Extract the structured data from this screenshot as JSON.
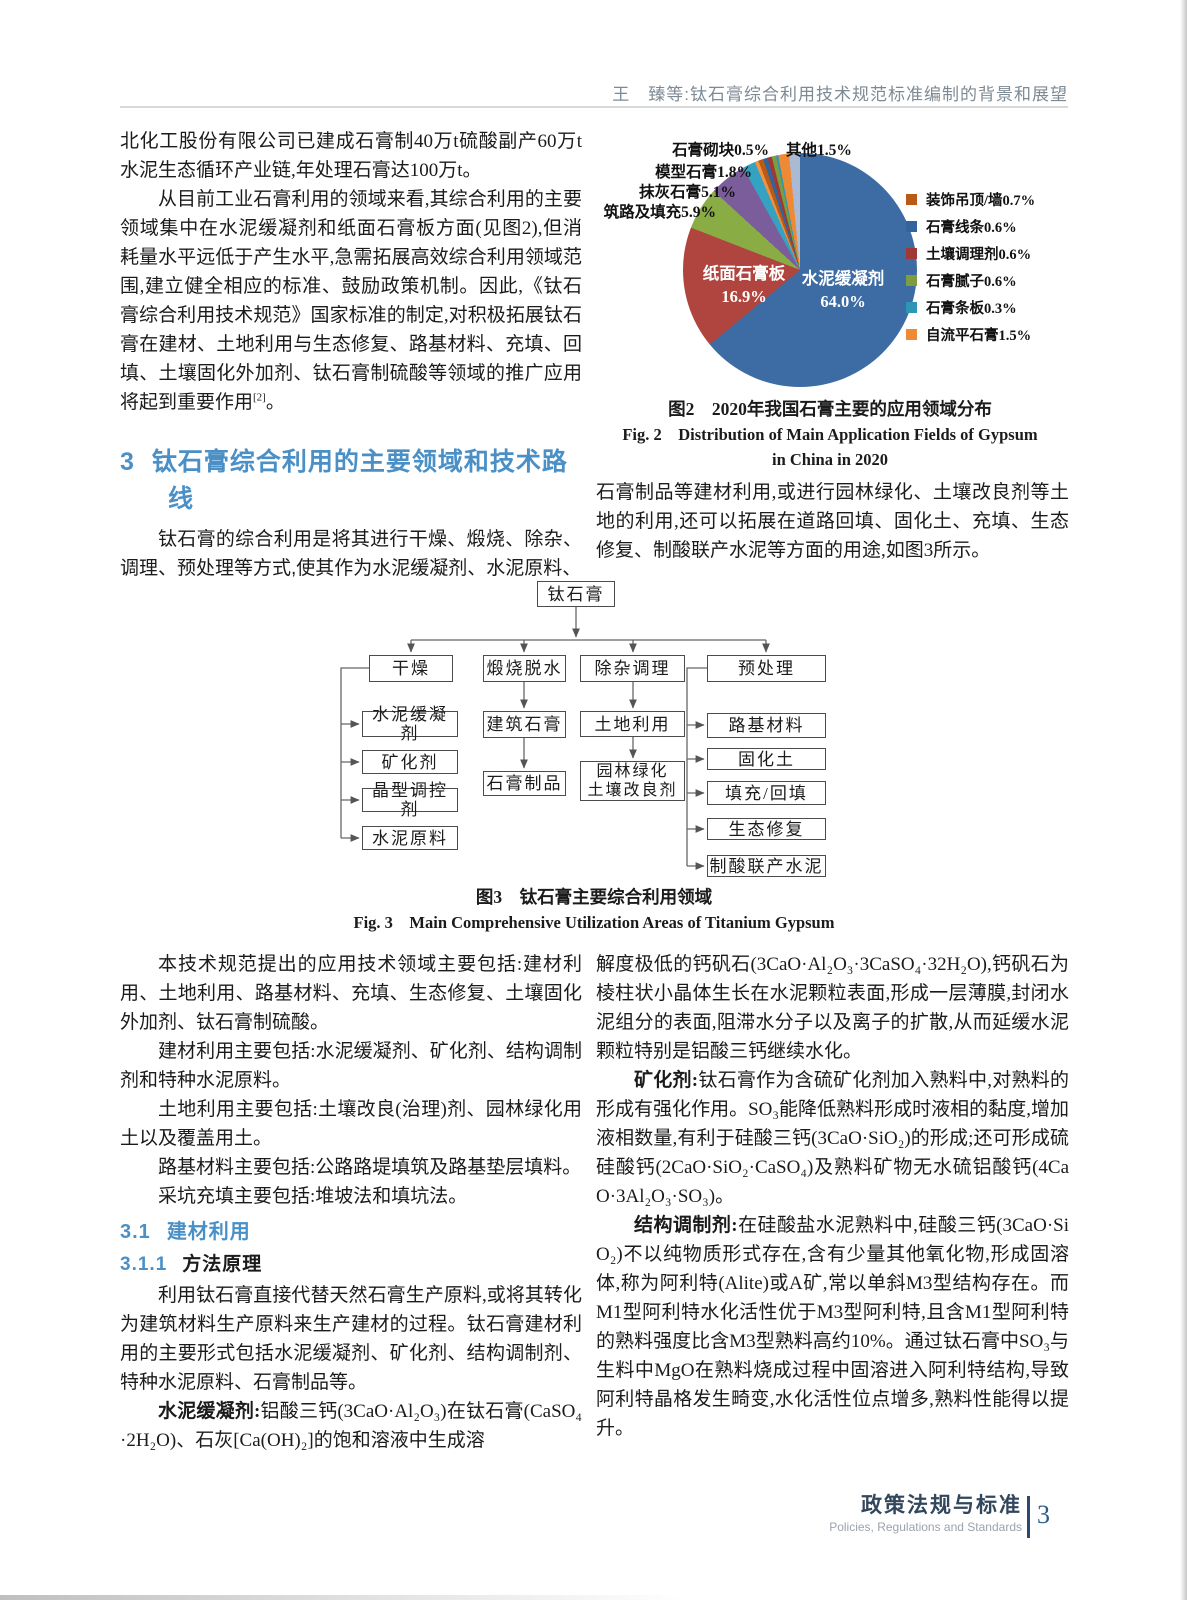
{
  "header": {
    "title": "王　臻等:钛石膏综合利用技术规范标准编制的背景和展望"
  },
  "left_top": {
    "p1": "北化工股份有限公司已建成石膏制40万t硫酸副产60万t水泥生态循环产业链,年处理石膏达100万t。",
    "p2_text": "从目前工业石膏利用的领域来看,其综合利用的主要领域集中在水泥缓凝剂和纸面石膏板方面(见图2),但消耗量水平远低于产生水平,急需拓展高效综合利用领域范围,建立健全相应的标准、鼓励政策机制。因此,《钛石膏综合利用技术规范》国家标准的制定,对积极拓展钛石膏在建材、土地利用与生态修复、路基材料、充填、回填、土壤固化外加剂、钛石膏制硫酸等领域的推广应用将起到重要作用",
    "p2_ref": "[2]",
    "p2_tail": "。"
  },
  "section3": {
    "number": "3",
    "title": "钛石膏综合利用的主要领域和技术路线",
    "intro": "钛石膏的综合利用是将其进行干燥、煅烧、除杂、调理、预处理等方式,使其作为水泥缓凝剂、水泥原料、"
  },
  "right_top": {
    "p1": "石膏制品等建材利用,或进行园林绿化、土壤改良剂等土地的利用,还可以拓展在道路回填、固化土、充填、生态修复、制酸联产水泥等方面的用途,如图3所示。"
  },
  "chart_data": {
    "type": "pie",
    "title": "2020年我国石膏主要的应用领域分布",
    "legend_position": "right",
    "slices": [
      {
        "label": "水泥缓凝剂",
        "value": 64.0,
        "color": "#3d6ca5",
        "placement": "inside"
      },
      {
        "label": "纸面石膏板",
        "value": 16.9,
        "color": "#b0453f",
        "placement": "inside"
      },
      {
        "label": "筑路及填充",
        "value": 5.9,
        "color": "#8aac45",
        "placement": "callout"
      },
      {
        "label": "抹灰石膏",
        "value": 5.1,
        "color": "#7b5d9b",
        "placement": "callout"
      },
      {
        "label": "模型石膏",
        "value": 1.8,
        "color": "#35a2c2",
        "placement": "callout"
      },
      {
        "label": "石膏砌块",
        "value": 0.5,
        "color": "#f29143",
        "placement": "callout"
      },
      {
        "label": "装饰吊顶/墙",
        "value": 0.7,
        "color": "#ba5a17",
        "placement": "legend"
      },
      {
        "label": "石膏线条",
        "value": 0.6,
        "color": "#31639f",
        "placement": "legend"
      },
      {
        "label": "土壤调理剂",
        "value": 0.6,
        "color": "#a23835",
        "placement": "legend"
      },
      {
        "label": "石膏腻子",
        "value": 0.6,
        "color": "#7e9d3f",
        "placement": "legend"
      },
      {
        "label": "石膏条板",
        "value": 0.3,
        "color": "#2d96b5",
        "placement": "legend"
      },
      {
        "label": "自流平石膏",
        "value": 1.5,
        "color": "#ee8a35",
        "placement": "legend"
      },
      {
        "label": "其他",
        "value": 1.5,
        "color": "#a9bad2",
        "placement": "callout"
      }
    ]
  },
  "figure2": {
    "caption_cn": "图2　2020年我国石膏主要的应用领域分布",
    "caption_en_1": "Fig. 2　Distribution of Main Application Fields of Gypsum",
    "caption_en_2": "in China in 2020"
  },
  "figure3": {
    "caption_cn": "图3　钛石膏主要综合利用领域",
    "caption_en": "Fig. 3　Main Comprehensive Utilization Areas of Titanium Gypsum",
    "nodes": [
      "钛石膏",
      "干燥",
      "煅烧脱水",
      "除杂调理",
      "预处理",
      "水泥缓凝剂",
      "矿化剂",
      "晶型调控剂",
      "水泥原料",
      "建筑石膏",
      "石膏制品",
      "土地利用",
      "园林绿化\n土壤改良剂",
      "路基材料",
      "固化土",
      "填充/回填",
      "生态修复",
      "制酸联产水泥"
    ]
  },
  "left_bottom": {
    "p1": "本技术规范提出的应用技术领域主要包括:建材利用、土地利用、路基材料、充填、生态修复、土壤固化外加剂、钛石膏制硫酸。",
    "p2": "建材利用主要包括:水泥缓凝剂、矿化剂、结构调制剂和特种水泥原料。",
    "p3": "土地利用主要包括:土壤改良(治理)剂、园林绿化用土以及覆盖用土。",
    "p4": "路基材料主要包括:公路路堤填筑及路基垫层填料。",
    "p5": "采坑充填主要包括:堆坡法和填坑法。",
    "h31_number": "3.1",
    "h31_title": "建材利用",
    "h311_number": "3.1.1",
    "h311_title": "方法原理",
    "p6": "利用钛石膏直接代替天然石膏生产原料,或将其转化为建筑材料生产原料来生产建材的过程。钛石膏建材利用的主要形式包括水泥缓凝剂、矿化剂、结构调制剂、特种水泥原料、石膏制品等。",
    "p7_lead": "水泥缓凝剂:",
    "p7_text": "铝酸三钙(3CaO·Al₂O₃)在钛石膏(CaSO₄·2H₂O)、石灰[Ca(OH)₂]的饱和溶液中生成溶"
  },
  "right_bottom": {
    "p1": "解度极低的钙矾石(3CaO·Al₂O₃·3CaSO₄·32H₂O),钙矾石为棱柱状小晶体生长在水泥颗粒表面,形成一层薄膜,封闭水泥组分的表面,阻滞水分子以及离子的扩散,从而延缓水泥颗粒特别是铝酸三钙继续水化。",
    "p2_lead": "矿化剂:",
    "p2_text": "钛石膏作为含硫矿化剂加入熟料中,对熟料的形成有强化作用。SO₃能降低熟料形成时液相的黏度,增加液相数量,有利于硅酸三钙(3CaO·SiO₂)的形成;还可形成硫硅酸钙(2CaO·SiO₂·CaSO₄)及熟料矿物无水硫铝酸钙(4CaO·3Al₂O₃·SO₃)。",
    "p3_lead": "结构调制剂:",
    "p3_text": "在硅酸盐水泥熟料中,硅酸三钙(3CaO·SiO₂)不以纯物质形式存在,含有少量其他氧化物,形成固溶体,称为阿利特(Alite)或A矿,常以单斜M3型结构存在。而M1型阿利特水化活性优于M3型阿利特,且含M1型阿利特的熟料强度比含M3型熟料高约10%。通过钛石膏中SO₃与生料中MgO在熟料烧成过程中固溶进入阿利特结构,导致阿利特晶格发生畸变,水化活性位点增多,熟料性能得以提升。"
  },
  "footer": {
    "section_cn": "政策法规与标准",
    "section_en": "Policies, Regulations and Standards",
    "page_number": "3"
  }
}
